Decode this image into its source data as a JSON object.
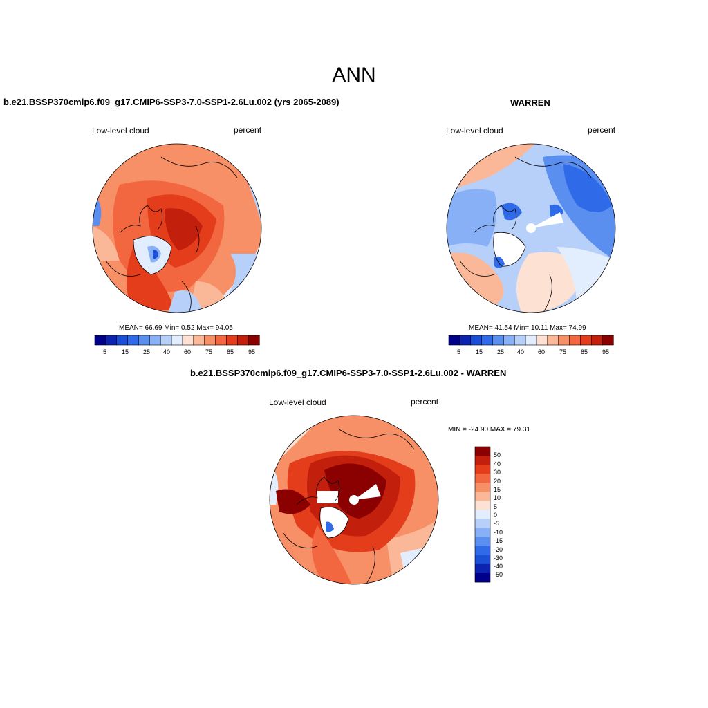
{
  "main_title": "ANN",
  "colors": {
    "abs_palette": [
      "#00008b",
      "#0c23b0",
      "#1a4fd6",
      "#2f6ae8",
      "#5a8ff0",
      "#88b0f6",
      "#b7d0fa",
      "#e2edfd",
      "#fde2d3",
      "#fbb899",
      "#f79067",
      "#f2673f",
      "#e33d1c",
      "#c2200c",
      "#8b0000"
    ],
    "diff_palette": [
      "#00008b",
      "#0c23b0",
      "#1a4fd6",
      "#2f6ae8",
      "#5a8ff0",
      "#88b0f6",
      "#b7d0fa",
      "#e2edfd",
      "#fde2d3",
      "#fbb899",
      "#f79067",
      "#f2673f",
      "#e33d1c",
      "#c2200c",
      "#8b0000"
    ]
  },
  "panels": [
    {
      "id": "model",
      "title": "b.e21.BSSP370cmip6.f09_g17.CMIP6-SSP3-7.0-SSP1-2.6Lu.002 (yrs 2065-2089)",
      "variable": "Low-level cloud",
      "units": "percent",
      "stats": "MEAN=  66.69  Min=   0.52  Max=  94.05",
      "mean": 66.69,
      "min": 0.52,
      "max": 94.05,
      "colorbar_labels": [
        "5",
        "15",
        "25",
        "40",
        "60",
        "75",
        "85",
        "95"
      ]
    },
    {
      "id": "obs",
      "title": "WARREN",
      "variable": "Low-level cloud",
      "units": "percent",
      "stats": "MEAN=  41.54  Min=  10.11  Max=  74.99",
      "mean": 41.54,
      "min": 10.11,
      "max": 74.99,
      "colorbar_labels": [
        "5",
        "15",
        "25",
        "40",
        "60",
        "75",
        "85",
        "95"
      ]
    },
    {
      "id": "diff",
      "title": "b.e21.BSSP370cmip6.f09_g17.CMIP6-SSP3-7.0-SSP1-2.6Lu.002 - WARREN",
      "variable": "Low-level cloud",
      "units": "percent",
      "stats": "MIN = -24.90 MAX =  79.31",
      "min": -24.9,
      "max": 79.31,
      "colorbar_labels": [
        "50",
        "40",
        "30",
        "20",
        "15",
        "10",
        "5",
        "0",
        "-5",
        "-10",
        "-15",
        "-20",
        "-30",
        "-40",
        "-50"
      ]
    }
  ]
}
